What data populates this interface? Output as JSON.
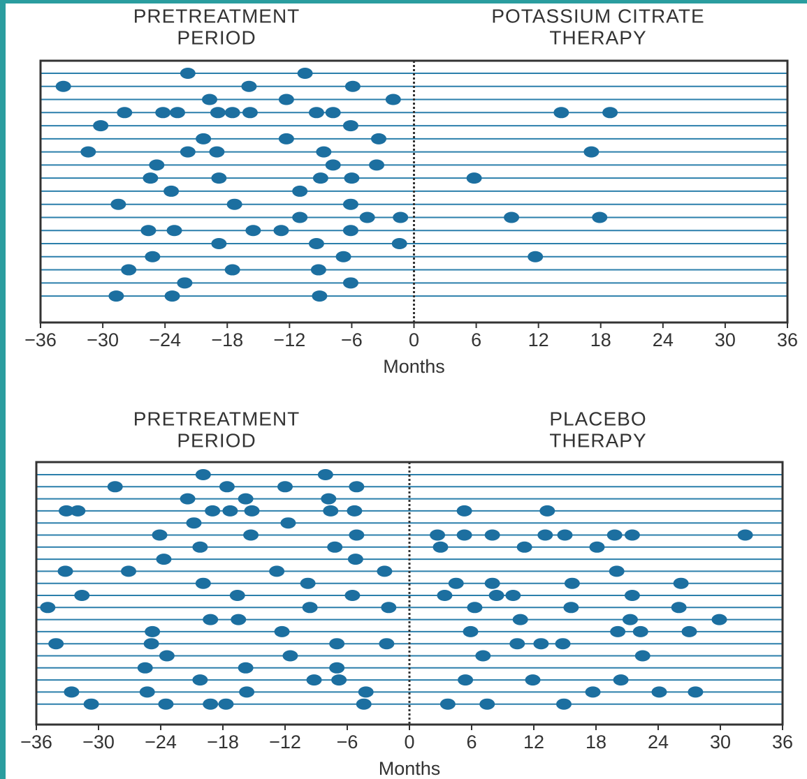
{
  "chart_data": [
    {
      "type": "event",
      "left_title": [
        "PRETREATMENT",
        "PERIOD"
      ],
      "right_title": [
        "POTASSIUM CITRATE",
        "THERAPY"
      ],
      "xlabel": "Months",
      "xlim": [
        -36,
        36
      ],
      "xticks": [
        {
          "value": -36,
          "label": "−36"
        },
        {
          "value": -30,
          "label": "−30"
        },
        {
          "value": -24,
          "label": "−24"
        },
        {
          "value": -18,
          "label": "−18"
        },
        {
          "value": -12,
          "label": "−12"
        },
        {
          "value": -6,
          "label": "−6"
        },
        0,
        6,
        12,
        18,
        24,
        30,
        36
      ],
      "vline": 0,
      "color": "#1c6fa0",
      "events": [
        [
          -21.8,
          -10.5
        ],
        [
          -33.8,
          -15.9,
          -5.9
        ],
        [
          -19.7,
          -12.3,
          -2
        ],
        [
          -27.9,
          -24.2,
          -22.8,
          -18.9,
          -17.5,
          -15.8,
          -9.4,
          -7.8,
          14.2,
          18.9
        ],
        [
          -30.2,
          -6.1
        ],
        [
          -20.3,
          -12.3,
          -3.4
        ],
        [
          -31.4,
          -21.8,
          -19,
          -8.7,
          17.1
        ],
        [
          -24.8,
          -7.8,
          -3.6
        ],
        [
          -25.4,
          -18.8,
          -9,
          -6,
          5.8
        ],
        [
          -23.4,
          -11
        ],
        [
          -28.5,
          -17.3,
          -6.1
        ],
        [
          -11,
          -4.5,
          -1.3,
          9.4,
          17.9
        ],
        [
          -25.6,
          -23.1,
          -15.5,
          -12.8,
          -6.1
        ],
        [
          -18.8,
          -9.4,
          -1.4
        ],
        [
          -25.2,
          -6.8,
          11.7
        ],
        [
          -27.5,
          -17.5,
          -9.2
        ],
        [
          -22.1,
          -6.1
        ],
        [
          -28.7,
          -23.3,
          -9.1
        ]
      ]
    },
    {
      "type": "event",
      "left_title": [
        "PRETREATMENT",
        "PERIOD"
      ],
      "right_title": [
        "PLACEBO",
        "THERAPY"
      ],
      "xlabel": "Months",
      "xlim": [
        -36,
        36
      ],
      "xticks": [
        {
          "value": -36,
          "label": "−36"
        },
        {
          "value": -30,
          "label": "−30"
        },
        {
          "value": -24,
          "label": "−24"
        },
        {
          "value": -18,
          "label": "−18"
        },
        {
          "value": -12,
          "label": "−12"
        },
        {
          "value": -6,
          "label": "−6"
        },
        0,
        6,
        12,
        18,
        24,
        30,
        36
      ],
      "vline": 0,
      "color": "#1c6fa0",
      "events": [
        [
          -19.9,
          -8.1
        ],
        [
          -28.4,
          -17.6,
          -12,
          -5.1
        ],
        [
          -21.4,
          -15.8,
          -7.8
        ],
        [
          -33.1,
          -32,
          -19,
          -17.3,
          -15.2,
          -7.6,
          -5.3,
          5.3,
          13.3
        ],
        [
          -20.8,
          -11.7
        ],
        [
          -24.1,
          -15.3,
          -5.1,
          2.7,
          5.3,
          8,
          13.1,
          15,
          19.8,
          21.5,
          32.4
        ],
        [
          -20.2,
          -7.2,
          3,
          11.1,
          18.1
        ],
        [
          -23.7,
          -5.2
        ],
        [
          -33.2,
          -27.1,
          -12.8,
          -2.4,
          20
        ],
        [
          -19.9,
          -9.8,
          4.5,
          8,
          15.7,
          26.2
        ],
        [
          -31.6,
          -16.6,
          -5.5,
          3.4,
          8.4,
          10,
          21.5
        ],
        [
          -34.9,
          -9.6,
          -2,
          6.3,
          15.6,
          26
        ],
        [
          -19.2,
          -16.5,
          10.7,
          21.3,
          29.9
        ],
        [
          -24.8,
          -12.3,
          5.9,
          20.1,
          22.3,
          27
        ],
        [
          -34.1,
          -24.9,
          -7,
          -2.2,
          10.4,
          12.7,
          14.8
        ],
        [
          -23.4,
          -11.5,
          7.1,
          22.5
        ],
        [
          -25.5,
          -15.8,
          -7
        ],
        [
          -20.2,
          -9.2,
          -6.8,
          5.4,
          11.9,
          20.4
        ],
        [
          -32.6,
          -25.3,
          -15.7,
          -4.2,
          17.7,
          24.1,
          27.6
        ],
        [
          -30.7,
          -23.5,
          -19.2,
          -17.7,
          -4.4,
          3.7,
          7.5,
          14.9
        ]
      ]
    }
  ]
}
